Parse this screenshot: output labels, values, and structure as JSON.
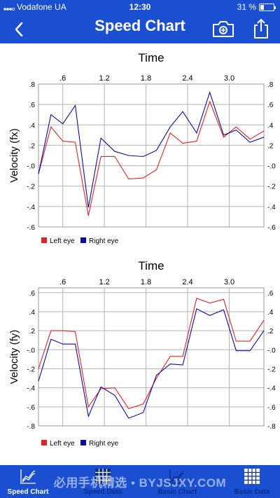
{
  "status_bar": {
    "carrier": "Vodafone UA",
    "time": "12:30",
    "battery_percent": "31 %",
    "battery_level": 0.31
  },
  "header": {
    "title": "Speed Chart",
    "back_icon": "chevron-left-icon",
    "camera_icon": "camera-icon",
    "share_icon": "share-icon"
  },
  "tab_bar": {
    "tabs": [
      {
        "label": "Speed Chart",
        "icon": "line-chart-icon",
        "active": true
      },
      {
        "label": "Speed Data",
        "icon": "grid-icon",
        "active": false
      },
      {
        "label": "Basic Chart",
        "icon": "line-chart-icon",
        "active": false
      },
      {
        "label": "Basic Data",
        "icon": "grid-icon",
        "active": false
      }
    ]
  },
  "watermark": "必用手机精选 • BYJSJXY.COM",
  "colors": {
    "header": "#1a4fd1",
    "left_eye": "#e32222",
    "right_eye": "#0a0aa8"
  },
  "chart_data": [
    {
      "type": "line",
      "title": "Time",
      "ylabel": "Velocity (fx)",
      "xlim": [
        0.25,
        3.5
      ],
      "ylim": [
        -0.6,
        0.8
      ],
      "xticks": [
        0.6,
        1.2,
        1.8,
        2.4,
        3.0
      ],
      "xtick_labels": [
        ".6",
        "1.2",
        "1.8",
        "2.4",
        "3.0"
      ],
      "yticks": [
        -0.6,
        -0.4,
        -0.2,
        0.0,
        0.2,
        0.4,
        0.6,
        0.8
      ],
      "ytick_labels": [
        "-.6",
        "-.4",
        "-.2",
        "-.0",
        ".2",
        ".4",
        ".6",
        ".8"
      ],
      "grid": true,
      "legend": "bottom-left",
      "x": [
        0.25,
        0.43,
        0.6,
        0.78,
        0.97,
        1.15,
        1.35,
        1.55,
        1.76,
        1.95,
        2.15,
        2.33,
        2.53,
        2.72,
        2.92,
        3.1,
        3.3,
        3.5
      ],
      "series": [
        {
          "name": "Left eye",
          "color": "#e32222",
          "values": [
            -0.08,
            0.38,
            0.24,
            0.23,
            -0.49,
            0.09,
            0.09,
            -0.13,
            -0.12,
            -0.04,
            0.32,
            0.22,
            0.24,
            0.63,
            0.28,
            0.38,
            0.26,
            0.34
          ]
        },
        {
          "name": "Right eye",
          "color": "#0a0aa8",
          "values": [
            -0.08,
            0.5,
            0.41,
            0.59,
            -0.41,
            0.27,
            0.14,
            0.1,
            0.09,
            0.15,
            0.38,
            0.53,
            0.32,
            0.72,
            0.3,
            0.35,
            0.23,
            0.28
          ]
        }
      ]
    },
    {
      "type": "line",
      "title": "Time",
      "ylabel": "Velocity (fy)",
      "xlim": [
        0.25,
        3.5
      ],
      "ylim": [
        -0.8,
        0.65
      ],
      "xticks": [
        0.6,
        1.2,
        1.8,
        2.4,
        3.0
      ],
      "xtick_labels": [
        ".6",
        "1.2",
        "1.8",
        "2.4",
        "3.0"
      ],
      "yticks": [
        -0.8,
        -0.6,
        -0.4,
        -0.2,
        0.0,
        0.2,
        0.4,
        0.6
      ],
      "ytick_labels": [
        "-.8",
        "-.6",
        "-.4",
        "-.2",
        "-.0",
        ".2",
        ".4",
        ".6"
      ],
      "grid": true,
      "legend": "bottom-left",
      "x": [
        0.25,
        0.43,
        0.6,
        0.78,
        0.97,
        1.15,
        1.35,
        1.55,
        1.76,
        1.95,
        2.15,
        2.33,
        2.53,
        2.72,
        2.92,
        3.1,
        3.3,
        3.5
      ],
      "series": [
        {
          "name": "Left eye",
          "color": "#e32222",
          "values": [
            -0.2,
            0.2,
            0.2,
            0.19,
            -0.6,
            -0.41,
            -0.4,
            -0.62,
            -0.57,
            -0.3,
            -0.07,
            -0.07,
            0.54,
            0.49,
            0.53,
            0.09,
            0.09,
            0.31
          ]
        },
        {
          "name": "Right eye",
          "color": "#0a0aa8",
          "values": [
            -0.33,
            0.11,
            0.06,
            0.06,
            -0.7,
            -0.39,
            -0.48,
            -0.72,
            -0.66,
            -0.27,
            -0.15,
            -0.16,
            0.43,
            0.36,
            0.42,
            -0.01,
            -0.01,
            0.2
          ]
        }
      ]
    }
  ]
}
